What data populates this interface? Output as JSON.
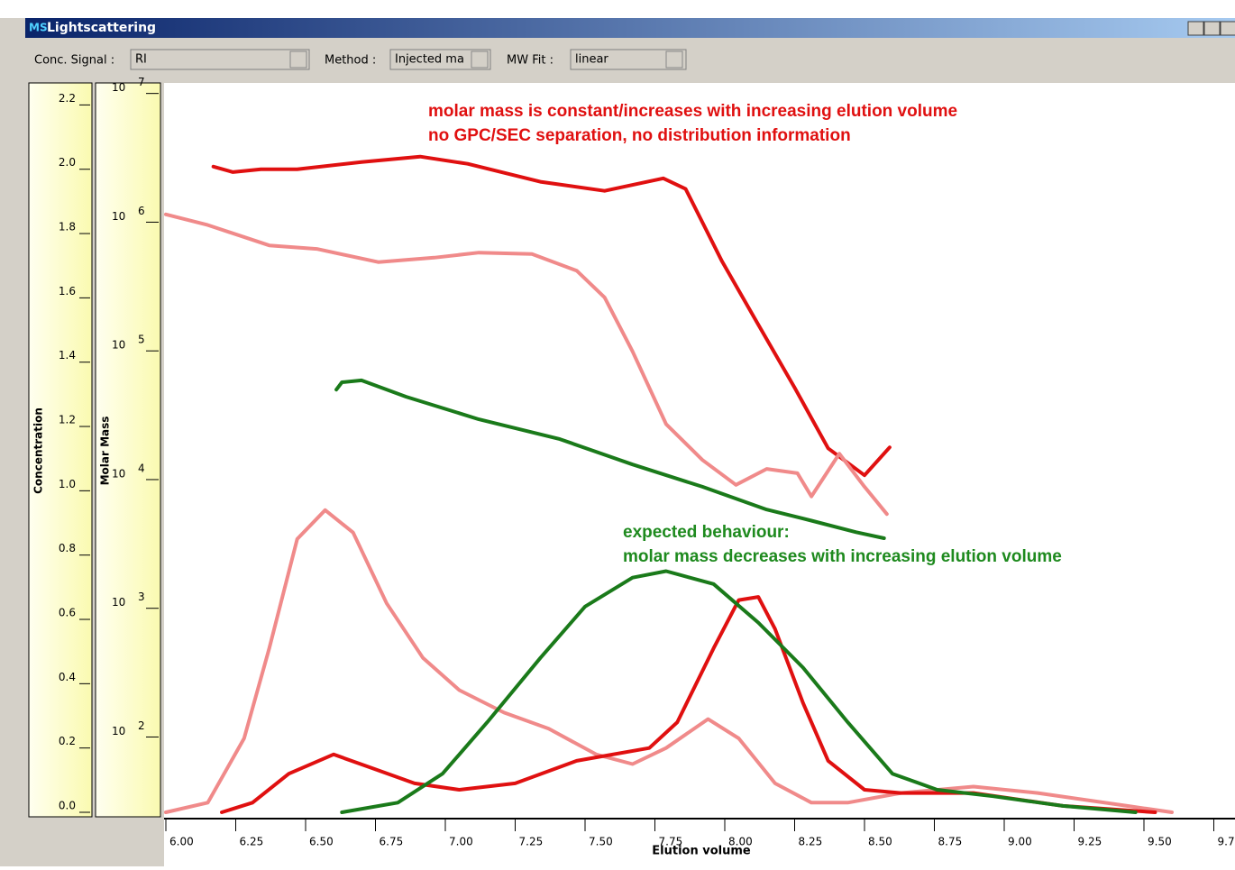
{
  "window": {
    "icon": "MS",
    "title": "Lightscattering",
    "toolbar": [
      {
        "label": "Conc. Signal :",
        "value": "RI"
      },
      {
        "label": "Method :",
        "value": "Injected ma"
      },
      {
        "label": "MW Fit :",
        "value": "linear"
      }
    ]
  },
  "chart_data": {
    "type": "line",
    "xlabel": "Elution volume",
    "ylabel": "Concentration",
    "y2label": "Molar Mass",
    "xlim": [
      6.0,
      9.8
    ],
    "xticks": [
      {
        "value": 6.0,
        "label": "6.00"
      },
      {
        "value": 6.25,
        "label": "6.25"
      },
      {
        "value": 6.5,
        "label": "6.50"
      },
      {
        "value": 6.75,
        "label": "6.75"
      },
      {
        "value": 7.0,
        "label": "7.00"
      },
      {
        "value": 7.25,
        "label": "7.25"
      },
      {
        "value": 7.5,
        "label": "7.50"
      },
      {
        "value": 7.75,
        "label": "7.75"
      },
      {
        "value": 8.0,
        "label": "8.00"
      },
      {
        "value": 8.25,
        "label": "8.25"
      },
      {
        "value": 8.5,
        "label": "8.50"
      },
      {
        "value": 8.75,
        "label": "8.75"
      },
      {
        "value": 9.0,
        "label": "9.00"
      },
      {
        "value": 9.25,
        "label": "9.25"
      },
      {
        "value": 9.5,
        "label": "9.50"
      },
      {
        "value": 9.75,
        "label": "9.75"
      }
    ],
    "ylim": [
      0,
      2.26
    ],
    "yticks": [
      {
        "value": 0,
        "label": "0.0"
      },
      0.2,
      0.4,
      0.6,
      0.8,
      {
        "value": 1,
        "label": "1.0"
      },
      1.2,
      1.4,
      1.6,
      1.8,
      {
        "value": 2,
        "label": "2.0"
      },
      2.2
    ],
    "y2lim": [
      26,
      11500000
    ],
    "y2log": true,
    "y2ticks": [
      {
        "value": 100,
        "label": "10",
        "exponent": "2"
      },
      {
        "value": 1000,
        "label": "10",
        "exponent": "3"
      },
      {
        "value": 10000,
        "label": "10",
        "exponent": "4"
      },
      {
        "value": 100000,
        "label": "10",
        "exponent": "5"
      },
      {
        "value": 1000000,
        "label": "10",
        "exponent": "6"
      },
      {
        "value": 10000000,
        "label": "10",
        "exponent": "7"
      }
    ],
    "annotations": [
      {
        "text": "molar mass is constant/increases with increasing elution volume",
        "color": "#e01010"
      },
      {
        "text": "no GPC/SEC separation, no distribution information",
        "color": "#e01010"
      },
      {
        "text": "expected behaviour:",
        "color": "#1e8a1e"
      },
      {
        "text": "molar mass decreases with increasing elution volume",
        "color": "#1e8a1e"
      }
    ],
    "series": [
      {
        "color": "#e01010",
        "axis": "y2",
        "x": [
          6.17,
          6.24,
          6.34,
          6.47,
          6.7,
          6.91,
          7.08,
          7.34,
          7.57,
          7.78,
          7.86,
          7.99,
          8.12,
          8.25,
          8.37,
          8.5,
          8.59
        ],
        "values": [
          2700000,
          2450000,
          2580000,
          2580000,
          2930000,
          3230000,
          2840000,
          2060000,
          1750000,
          2190000,
          1810000,
          497000,
          160000,
          51800,
          17500,
          10800,
          17800
        ]
      },
      {
        "color": "#f08a8a",
        "axis": "y2",
        "x": [
          6.0,
          6.15,
          6.37,
          6.54,
          6.76,
          6.96,
          7.12,
          7.31,
          7.47,
          7.57,
          7.67,
          7.79,
          7.92,
          8.04,
          8.15,
          8.26,
          8.31,
          8.41,
          8.5,
          8.58
        ],
        "values": [
          1150000,
          950000,
          660000,
          620000,
          490000,
          530000,
          580000,
          565000,
          420000,
          260000,
          99000,
          27000,
          14200,
          9100,
          12100,
          11200,
          7400,
          15900,
          8800,
          5400
        ]
      },
      {
        "color": "#1a7a1a",
        "axis": "y2",
        "x": [
          6.61,
          6.63,
          6.7,
          6.86,
          7.12,
          7.41,
          7.67,
          7.92,
          8.15,
          8.31,
          8.47,
          8.57
        ],
        "values": [
          50000,
          57000,
          59000,
          44000,
          29400,
          20600,
          13100,
          8800,
          5850,
          4800,
          3900,
          3500
        ]
      },
      {
        "color": "#f08a8a",
        "x": [
          6.0,
          6.15,
          6.28,
          6.37,
          6.47,
          6.57,
          6.67,
          6.79,
          6.92,
          7.05,
          7.21,
          7.37,
          7.54,
          7.67,
          7.79,
          7.94,
          8.05,
          8.18,
          8.31,
          8.44,
          8.63,
          8.89,
          9.12,
          9.44,
          9.6
        ],
        "values": [
          0.0,
          0.03,
          0.23,
          0.51,
          0.85,
          0.94,
          0.87,
          0.65,
          0.48,
          0.38,
          0.31,
          0.26,
          0.18,
          0.15,
          0.2,
          0.29,
          0.23,
          0.09,
          0.03,
          0.03,
          0.06,
          0.08,
          0.06,
          0.02,
          0.0
        ]
      },
      {
        "color": "#e01010",
        "x": [
          6.2,
          6.31,
          6.44,
          6.6,
          6.73,
          6.89,
          7.05,
          7.25,
          7.47,
          7.73,
          7.83,
          7.96,
          8.05,
          8.12,
          8.18,
          8.28,
          8.37,
          8.5,
          8.63,
          8.89,
          9.21,
          9.54
        ],
        "values": [
          0.0,
          0.03,
          0.12,
          0.18,
          0.14,
          0.09,
          0.07,
          0.09,
          0.16,
          0.2,
          0.28,
          0.51,
          0.66,
          0.67,
          0.57,
          0.34,
          0.16,
          0.07,
          0.06,
          0.06,
          0.02,
          0.0
        ]
      },
      {
        "color": "#1a7a1a",
        "x": [
          6.63,
          6.83,
          6.99,
          7.15,
          7.34,
          7.5,
          7.67,
          7.79,
          7.96,
          8.12,
          8.28,
          8.44,
          8.6,
          8.76,
          8.96,
          9.21,
          9.47
        ],
        "values": [
          0.0,
          0.03,
          0.12,
          0.28,
          0.48,
          0.64,
          0.73,
          0.75,
          0.71,
          0.59,
          0.45,
          0.28,
          0.12,
          0.07,
          0.05,
          0.02,
          0.0
        ]
      }
    ]
  }
}
